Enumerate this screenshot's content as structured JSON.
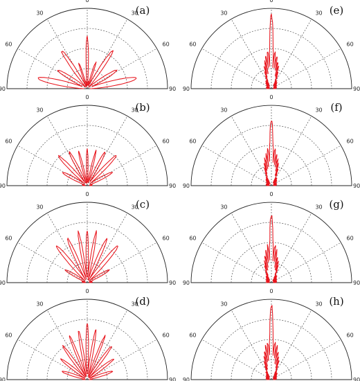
{
  "chart_data": {
    "type": "polar",
    "panels": [
      {
        "label": "(a)",
        "theta_ticks": [
          "0",
          "30",
          "60",
          "90",
          "90"
        ],
        "lobes": [
          {
            "angle": 0,
            "r": 0.62,
            "width": 3
          },
          {
            "angle": -18,
            "r": 0.32,
            "width": 3
          },
          {
            "angle": 18,
            "r": 0.32,
            "width": 3
          },
          {
            "angle": -34,
            "r": 0.55,
            "width": 5
          },
          {
            "angle": 34,
            "r": 0.55,
            "width": 5
          },
          {
            "angle": -58,
            "r": 0.42,
            "width": 6
          },
          {
            "angle": 58,
            "r": 0.42,
            "width": 6
          },
          {
            "angle": -78,
            "r": 0.62,
            "width": 7
          },
          {
            "angle": 78,
            "r": 0.62,
            "width": 7
          }
        ]
      },
      {
        "label": "(b)",
        "theta_ticks": [
          "0",
          "30",
          "60",
          "90",
          "90"
        ],
        "lobes": [
          {
            "angle": 0,
            "r": 0.42,
            "width": 3
          },
          {
            "angle": -14,
            "r": 0.42,
            "width": 3
          },
          {
            "angle": 14,
            "r": 0.42,
            "width": 3
          },
          {
            "angle": -28,
            "r": 0.46,
            "width": 4
          },
          {
            "angle": 28,
            "r": 0.46,
            "width": 4
          },
          {
            "angle": -44,
            "r": 0.5,
            "width": 5
          },
          {
            "angle": 44,
            "r": 0.5,
            "width": 5
          },
          {
            "angle": -62,
            "r": 0.34,
            "width": 6
          },
          {
            "angle": 62,
            "r": 0.34,
            "width": 6
          }
        ]
      },
      {
        "label": "(c)",
        "theta_ticks": [
          "0",
          "30",
          "60",
          "90",
          "90"
        ],
        "lobes": [
          {
            "angle": 0,
            "r": 0.6,
            "width": 3
          },
          {
            "angle": -10,
            "r": 0.62,
            "width": 3
          },
          {
            "angle": 10,
            "r": 0.62,
            "width": 3
          },
          {
            "angle": -24,
            "r": 0.58,
            "width": 4
          },
          {
            "angle": 24,
            "r": 0.58,
            "width": 4
          },
          {
            "angle": -40,
            "r": 0.58,
            "width": 5
          },
          {
            "angle": 40,
            "r": 0.58,
            "width": 5
          },
          {
            "angle": -60,
            "r": 0.3,
            "width": 6
          },
          {
            "angle": 60,
            "r": 0.3,
            "width": 6
          }
        ]
      },
      {
        "label": "(d)",
        "theta_ticks": [
          "0",
          "30",
          "60",
          "90",
          "90"
        ],
        "lobes": [
          {
            "angle": 0,
            "r": 0.65,
            "width": 3
          },
          {
            "angle": -10,
            "r": 0.6,
            "width": 3
          },
          {
            "angle": 10,
            "r": 0.6,
            "width": 3
          },
          {
            "angle": -22,
            "r": 0.56,
            "width": 3
          },
          {
            "angle": 22,
            "r": 0.56,
            "width": 3
          },
          {
            "angle": -36,
            "r": 0.5,
            "width": 4
          },
          {
            "angle": 36,
            "r": 0.5,
            "width": 4
          },
          {
            "angle": -52,
            "r": 0.4,
            "width": 5
          },
          {
            "angle": 52,
            "r": 0.4,
            "width": 5
          },
          {
            "angle": -72,
            "r": 0.32,
            "width": 6
          },
          {
            "angle": 72,
            "r": 0.32,
            "width": 6
          }
        ]
      },
      {
        "label": "(e)",
        "theta_ticks": [
          "0",
          "30",
          "60",
          "90",
          "90"
        ],
        "lobes": [
          {
            "angle": 0,
            "r": 0.88,
            "width": 3
          }
        ],
        "fan": {
          "peak": 0.45,
          "half_angle": 30,
          "tooth": 4
        }
      },
      {
        "label": "(f)",
        "theta_ticks": [
          "0",
          "30",
          "60",
          "90",
          "90"
        ],
        "lobes": [
          {
            "angle": 0,
            "r": 0.8,
            "width": 3
          }
        ],
        "fan": {
          "peak": 0.45,
          "half_angle": 30,
          "tooth": 4
        }
      },
      {
        "label": "(g)",
        "theta_ticks": [
          "0",
          "30",
          "60",
          "90",
          "90"
        ],
        "lobes": [
          {
            "angle": 0,
            "r": 0.82,
            "width": 3
          }
        ],
        "fan": {
          "peak": 0.45,
          "half_angle": 30,
          "tooth": 4
        }
      },
      {
        "label": "(h)",
        "theta_ticks": [
          "0",
          "30",
          "60",
          "90",
          "90"
        ],
        "lobes": [
          {
            "angle": 0,
            "r": 0.9,
            "width": 3
          }
        ],
        "fan": {
          "peak": 0.45,
          "half_angle": 32,
          "tooth": 4
        }
      }
    ],
    "grid": {
      "rings": [
        0.25,
        0.5,
        0.75
      ],
      "spokes_deg": [
        -60,
        -30,
        0,
        30,
        60
      ]
    },
    "colors": {
      "pattern": "#e8141c",
      "grid": "#555555",
      "frame": "#222222"
    }
  }
}
